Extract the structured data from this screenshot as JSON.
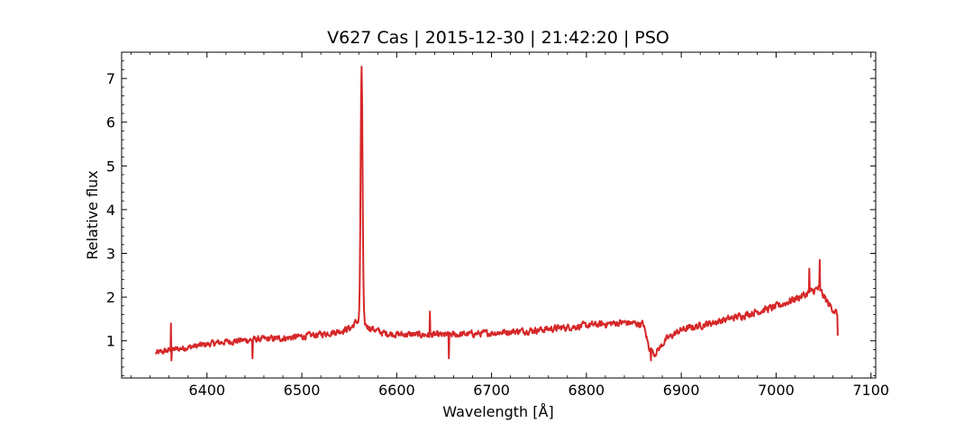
{
  "chart_data": {
    "type": "line",
    "title": "V627 Cas | 2015-12-30 | 21:42:20 | PSO",
    "xlabel": "Wavelength [Å]",
    "ylabel": "Relative flux",
    "xlim": [
      6310,
      7105
    ],
    "ylim": [
      0.15,
      7.6
    ],
    "x_ticks": [
      6400,
      6500,
      6600,
      6700,
      6800,
      6900,
      7000,
      7100
    ],
    "y_ticks": [
      1,
      2,
      3,
      4,
      5,
      6,
      7
    ],
    "grid": false,
    "series": [
      {
        "color": "#d62728",
        "x_range": [
          6346,
          7065
        ],
        "baseline": [
          [
            6346,
            0.72
          ],
          [
            6360,
            0.78
          ],
          [
            6380,
            0.85
          ],
          [
            6400,
            0.92
          ],
          [
            6420,
            0.98
          ],
          [
            6450,
            1.03
          ],
          [
            6480,
            1.06
          ],
          [
            6500,
            1.1
          ],
          [
            6520,
            1.15
          ],
          [
            6540,
            1.22
          ],
          [
            6552,
            1.3
          ],
          [
            6558,
            1.45
          ],
          [
            6572,
            1.3
          ],
          [
            6585,
            1.18
          ],
          [
            6600,
            1.15
          ],
          [
            6650,
            1.13
          ],
          [
            6700,
            1.18
          ],
          [
            6750,
            1.25
          ],
          [
            6800,
            1.35
          ],
          [
            6840,
            1.42
          ],
          [
            6860,
            1.38
          ],
          [
            6866,
            0.85
          ],
          [
            6872,
            0.7
          ],
          [
            6885,
            1.05
          ],
          [
            6900,
            1.25
          ],
          [
            6950,
            1.5
          ],
          [
            7000,
            1.78
          ],
          [
            7030,
            2.05
          ],
          [
            7045,
            2.2
          ],
          [
            7055,
            1.85
          ],
          [
            7065,
            1.6
          ]
        ],
        "features": [
          {
            "type": "emission",
            "center": 6563,
            "peak": 7.27,
            "fwhm": 2.4
          },
          {
            "type": "spike",
            "x": 6362,
            "y": 1.4
          },
          {
            "type": "spike",
            "x": 6362.5,
            "y": 0.55
          },
          {
            "type": "spike",
            "x": 6448,
            "y": 0.6
          },
          {
            "type": "spike",
            "x": 6635,
            "y": 1.67
          },
          {
            "type": "spike",
            "x": 6655,
            "y": 0.6
          },
          {
            "type": "spike",
            "x": 6868,
            "y": 0.55
          },
          {
            "type": "spike",
            "x": 7035,
            "y": 2.65
          },
          {
            "type": "spike",
            "x": 7046,
            "y": 2.85
          },
          {
            "type": "spike",
            "x": 7065,
            "y": 1.12
          }
        ],
        "noise_amplitude": 0.11
      }
    ]
  }
}
